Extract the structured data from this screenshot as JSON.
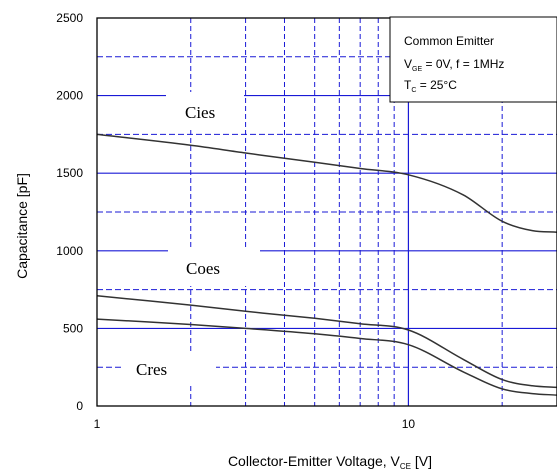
{
  "chart_data": {
    "type": "line",
    "xlabel": "Collector-Emitter Voltage, V",
    "xlabel_sub": "CE",
    "xlabel_unit": " [V]",
    "ylabel": "Capacitance [pF]",
    "x_scale": "log",
    "xlim": [
      1,
      30
    ],
    "ylim": [
      0,
      2500
    ],
    "x_ticks": [
      1,
      10
    ],
    "x_tick_labels": [
      "1",
      "10"
    ],
    "y_ticks": [
      0,
      500,
      1000,
      1500,
      2000,
      2500
    ],
    "y_tick_labels": [
      "0",
      "500",
      "1000",
      "1500",
      "2000",
      "2500"
    ],
    "grid": true,
    "colors": {
      "grid": "#1a1ad6",
      "frame": "#000000",
      "curve": "#333333"
    },
    "legend": {
      "line1": "Common Emitter",
      "line2_prefix": "V",
      "line2_sub": "GE",
      "line2_rest": " = 0V, f = 1MHz",
      "line3_prefix": "T",
      "line3_sub": "C",
      "line3_rest": " = 25°C"
    },
    "series": [
      {
        "name": "Cies",
        "x": [
          1,
          2,
          3,
          5,
          7,
          10,
          15,
          20,
          25,
          30
        ],
        "y": [
          1750,
          1680,
          1630,
          1570,
          1530,
          1490,
          1360,
          1190,
          1130,
          1120
        ]
      },
      {
        "name": "Coes",
        "x": [
          1,
          2,
          3,
          5,
          7,
          10,
          15,
          20,
          25,
          30
        ],
        "y": [
          710,
          650,
          610,
          565,
          530,
          490,
          300,
          170,
          130,
          120
        ]
      },
      {
        "name": "Cres",
        "x": [
          1,
          2,
          3,
          5,
          7,
          10,
          15,
          20,
          25,
          30
        ],
        "y": [
          560,
          525,
          500,
          465,
          435,
          395,
          220,
          110,
          80,
          70
        ]
      }
    ]
  }
}
